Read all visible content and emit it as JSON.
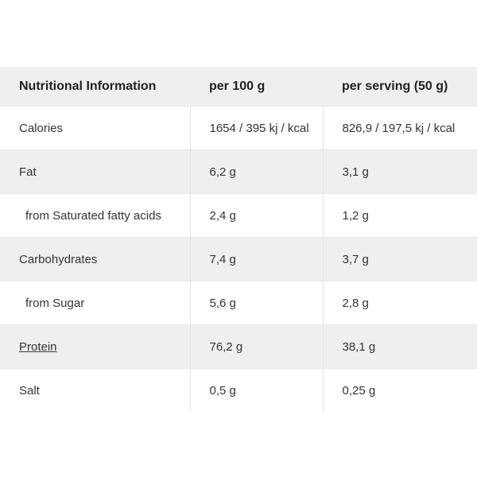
{
  "table": {
    "header": {
      "name_col": "Nutritional Information",
      "per_100g_col": "per 100 g",
      "per_serving_col": "per serving (50 g)"
    },
    "rows": [
      {
        "label": "Calories",
        "per_100g": "1654 / 395 kj / kcal",
        "per_serving": "826,9 / 197,5 kj / kcal",
        "indent": false,
        "link": false
      },
      {
        "label": "Fat",
        "per_100g": "6,2 g",
        "per_serving": "3,1 g",
        "indent": false,
        "link": false
      },
      {
        "label": "from Saturated fatty acids",
        "per_100g": "2,4 g",
        "per_serving": "1,2 g",
        "indent": true,
        "link": false
      },
      {
        "label": "Carbohydrates",
        "per_100g": "7,4 g",
        "per_serving": "3,7 g",
        "indent": false,
        "link": false
      },
      {
        "label": "from Sugar",
        "per_100g": "5,6 g",
        "per_serving": "2,8 g",
        "indent": true,
        "link": false
      },
      {
        "label": "Protein",
        "per_100g": "76,2 g",
        "per_serving": "38,1 g",
        "indent": false,
        "link": true
      },
      {
        "label": "Salt",
        "per_100g": "0,5 g",
        "per_serving": "0,25 g",
        "indent": false,
        "link": false
      }
    ],
    "colors": {
      "stripe_bg": "#efefef",
      "row_bg": "#ffffff",
      "horizontal_border": "#e7e7e7",
      "vertical_border": "#e2e2e2",
      "text": "#333333"
    }
  }
}
